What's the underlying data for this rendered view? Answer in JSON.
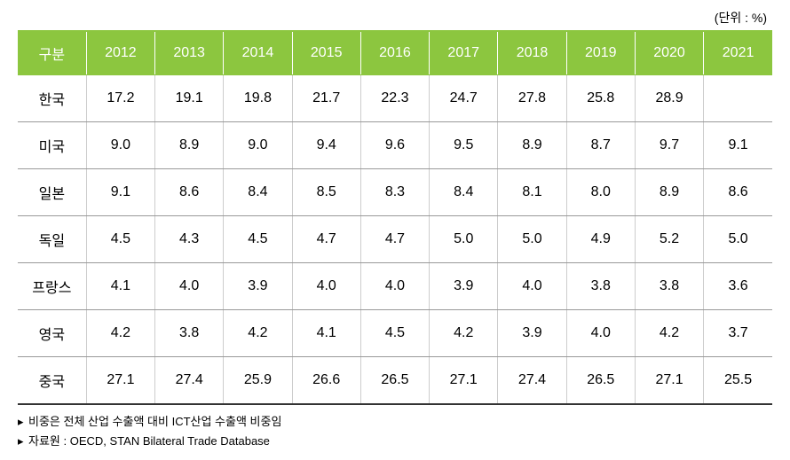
{
  "unit_label": "(단위 : %)",
  "table": {
    "columns": [
      "구분",
      "2012",
      "2013",
      "2014",
      "2015",
      "2016",
      "2017",
      "2018",
      "2019",
      "2020",
      "2021"
    ],
    "rows": [
      [
        "한국",
        "17.2",
        "19.1",
        "19.8",
        "21.7",
        "22.3",
        "24.7",
        "27.8",
        "25.8",
        "28.9",
        ""
      ],
      [
        "미국",
        "9.0",
        "8.9",
        "9.0",
        "9.4",
        "9.6",
        "9.5",
        "8.9",
        "8.7",
        "9.7",
        "9.1"
      ],
      [
        "일본",
        "9.1",
        "8.6",
        "8.4",
        "8.5",
        "8.3",
        "8.4",
        "8.1",
        "8.0",
        "8.9",
        "8.6"
      ],
      [
        "독일",
        "4.5",
        "4.3",
        "4.5",
        "4.7",
        "4.7",
        "5.0",
        "5.0",
        "4.9",
        "5.2",
        "5.0"
      ],
      [
        "프랑스",
        "4.1",
        "4.0",
        "3.9",
        "4.0",
        "4.0",
        "3.9",
        "4.0",
        "3.8",
        "3.8",
        "3.6"
      ],
      [
        "영국",
        "4.2",
        "3.8",
        "4.2",
        "4.1",
        "4.5",
        "4.2",
        "3.9",
        "4.0",
        "4.2",
        "3.7"
      ],
      [
        "중국",
        "27.1",
        "27.4",
        "25.9",
        "26.6",
        "26.5",
        "27.1",
        "27.4",
        "26.5",
        "27.1",
        "25.5"
      ]
    ]
  },
  "footnotes": {
    "marker": "▸",
    "note1": "비중은 전체 산업 수출액 대비 ICT산업 수출액 비중임",
    "note2": "자료원 : OECD, STAN Bilateral Trade Database"
  },
  "styling": {
    "header_bg_color": "#8cc63f",
    "header_text_color": "#ffffff",
    "cell_text_color": "#000000",
    "row_border_color": "#999999",
    "col_border_color": "#cccccc",
    "table_bottom_border_color": "#333333",
    "background_color": "#ffffff",
    "header_fontsize": 16,
    "cell_fontsize": 16,
    "footnote_fontsize": 13,
    "column_count": 11
  }
}
